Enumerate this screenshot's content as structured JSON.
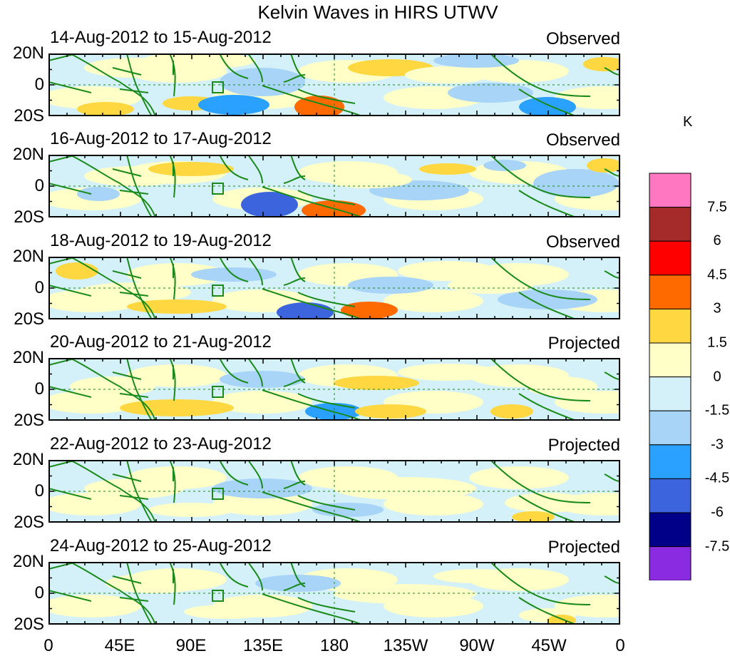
{
  "title": "Kelvin Waves in HIRS UTWV",
  "lat_labels": [
    "20N",
    "0",
    "20S"
  ],
  "lon_labels": [
    "0",
    "45E",
    "90E",
    "135E",
    "180",
    "135W",
    "90W",
    "45W",
    "0"
  ],
  "panels": [
    {
      "date": "14-Aug-2012 to 15-Aug-2012",
      "kind": "Observed"
    },
    {
      "date": "16-Aug-2012 to 17-Aug-2012",
      "kind": "Observed"
    },
    {
      "date": "18-Aug-2012 to 19-Aug-2012",
      "kind": "Observed"
    },
    {
      "date": "20-Aug-2012 to 21-Aug-2012",
      "kind": "Projected"
    },
    {
      "date": "22-Aug-2012 to 23-Aug-2012",
      "kind": "Projected"
    },
    {
      "date": "24-Aug-2012 to 25-Aug-2012",
      "kind": "Projected"
    }
  ],
  "colorbar": {
    "unit": "K",
    "labels": [
      "7.5",
      "6",
      "4.5",
      "3",
      "1.5",
      "0",
      "-1.5",
      "-3",
      "-4.5",
      "-6",
      "-7.5"
    ],
    "colors": [
      "#ff77c0",
      "#a52a2a",
      "#ff0000",
      "#ff6a00",
      "#ffd740",
      "#ffffc8",
      "#d4f0f8",
      "#a8d4f8",
      "#2aa0ff",
      "#3c64dc",
      "#000088",
      "#8a2be2"
    ]
  }
}
